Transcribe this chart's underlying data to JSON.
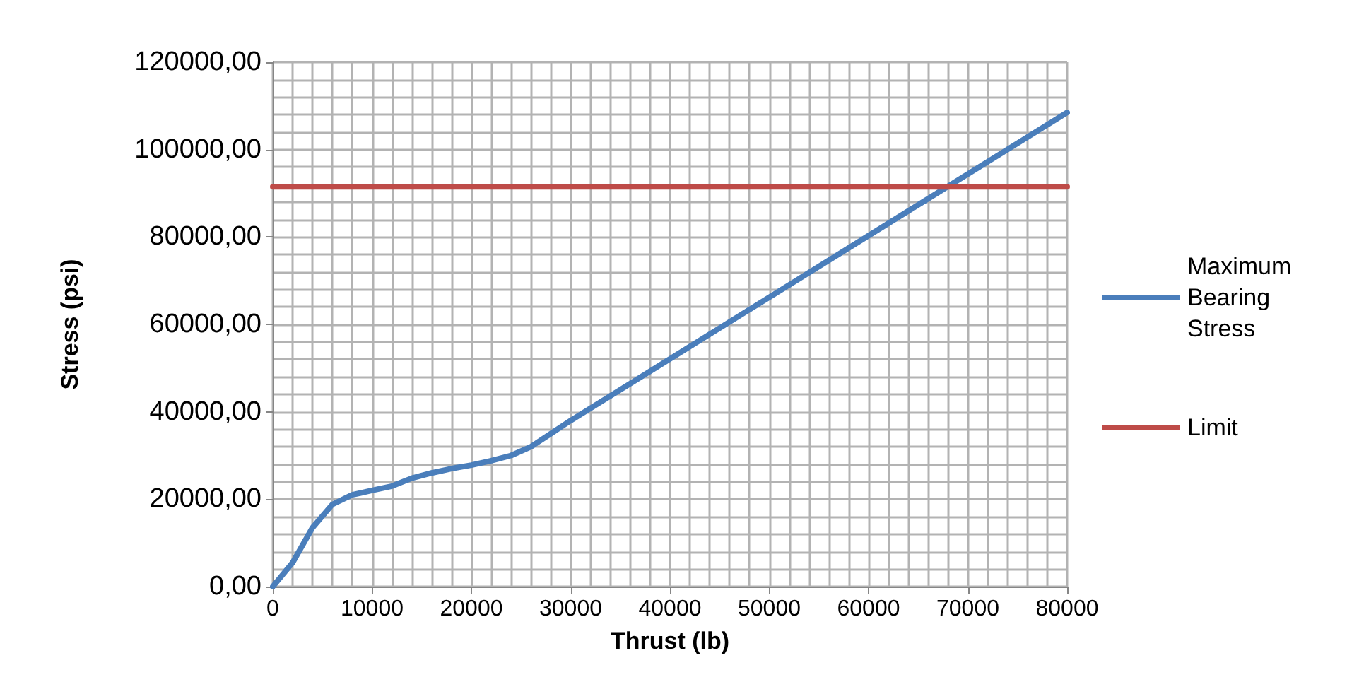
{
  "chart_data": {
    "type": "line",
    "xlabel": "Thrust (lb)",
    "ylabel": "Stress (psi)",
    "xlim": [
      0,
      80000
    ],
    "xticks": [
      0,
      10000,
      20000,
      30000,
      40000,
      50000,
      60000,
      70000,
      80000
    ],
    "ylim": [
      0,
      120000
    ],
    "yticks": [
      {
        "value": 0,
        "label": "0,00"
      },
      {
        "value": 20000,
        "label": "20000,00"
      },
      {
        "value": 40000,
        "label": "40000,00"
      },
      {
        "value": 60000,
        "label": "60000,00"
      },
      {
        "value": 80000,
        "label": "80000,00"
      },
      {
        "value": 100000,
        "label": "100000,00"
      },
      {
        "value": 120000,
        "label": "120000,00"
      }
    ],
    "grid": true,
    "legend": "right",
    "marker": "none",
    "line_style": "solid",
    "series": [
      {
        "name": "Maximum Bearing Stress",
        "color": "#4a7ebb",
        "x": [
          0,
          2000,
          4000,
          6000,
          8000,
          10000,
          12000,
          14000,
          16000,
          18000,
          20000,
          22000,
          24000,
          26000,
          28000,
          30000,
          80000
        ],
        "values": [
          0,
          5500,
          13500,
          18800,
          21000,
          22000,
          23000,
          24800,
          26000,
          27000,
          27800,
          28800,
          30000,
          32000,
          35000,
          38000,
          108500
        ]
      },
      {
        "name": "Limit",
        "color": "#be4b48",
        "x": [
          0,
          80000
        ],
        "values": [
          91500,
          91500
        ]
      }
    ]
  }
}
